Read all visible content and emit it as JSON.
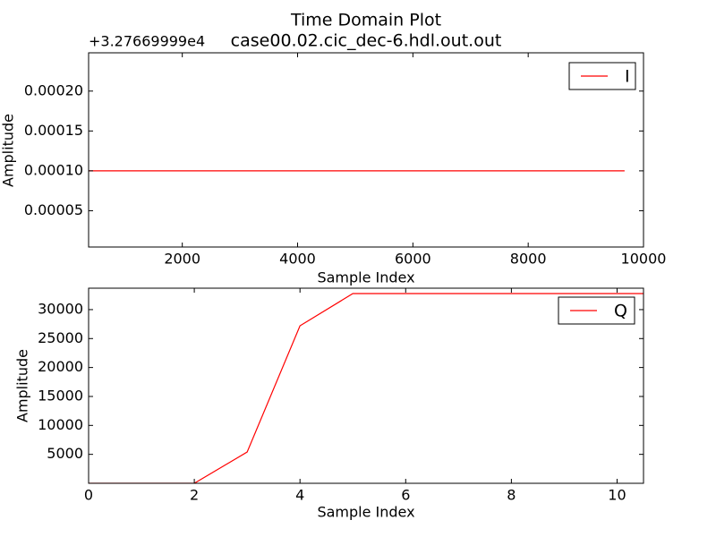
{
  "chart_data": [
    {
      "type": "line",
      "title": "Time Domain Plot",
      "subtitle": "case00.02.cic_dec-6.hdl.out.out",
      "y_offset_label": "+3.27669999e4",
      "xlabel": "Sample Index",
      "ylabel": "Amplitude",
      "x": [
        0,
        9672
      ],
      "series": [
        {
          "name": "I",
          "color": "#ff0000",
          "values": [
            0.0001,
            0.0001
          ]
        }
      ],
      "xlim": [
        375,
        10000
      ],
      "xticks": [
        2000,
        4000,
        6000,
        8000,
        10000
      ],
      "ylim": [
        4.5e-06,
        0.000248
      ],
      "yticks": [
        {
          "value": 5e-05,
          "label": "0.00005"
        },
        {
          "value": 0.0001,
          "label": "0.00010"
        },
        {
          "value": 0.00015,
          "label": "0.00015"
        },
        {
          "value": 0.0002,
          "label": "0.00020"
        }
      ],
      "legend": "upper right",
      "grid": false
    },
    {
      "type": "line",
      "xlabel": "Sample Index",
      "ylabel": "Amplitude",
      "x": [
        0,
        1,
        2,
        3,
        4,
        5,
        6,
        7,
        8,
        9,
        10,
        11
      ],
      "series": [
        {
          "name": "Q",
          "color": "#ff0000",
          "values": [
            0,
            0,
            0,
            5400,
            27200,
            32767,
            32767,
            32767,
            32767,
            32767,
            32767,
            32767
          ]
        }
      ],
      "xlim": [
        0,
        10.5
      ],
      "xticks": [
        0,
        2,
        4,
        6,
        8,
        10
      ],
      "ylim": [
        0,
        33700
      ],
      "yticks": [
        5000,
        10000,
        15000,
        20000,
        25000,
        30000
      ],
      "legend": "upper right",
      "grid": false
    }
  ]
}
